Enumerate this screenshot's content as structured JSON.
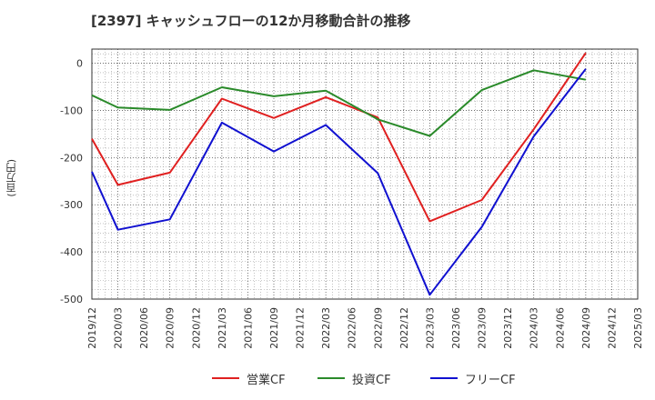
{
  "chart_data": {
    "type": "line",
    "title": "[2397]  キャッシュフローの12か月移動合計の推移",
    "ylabel": "(百万円)",
    "xlabel": "",
    "ylim": [
      -500,
      30
    ],
    "yticks": [
      0,
      -100,
      -200,
      -300,
      -400,
      -500
    ],
    "grid": true,
    "legend_position": "bottom",
    "x": [
      "2019/12",
      "2020/03",
      "2020/06",
      "2020/09",
      "2020/12",
      "2021/03",
      "2021/06",
      "2021/09",
      "2021/12",
      "2022/03",
      "2022/06",
      "2022/09",
      "2022/12",
      "2023/03",
      "2023/06",
      "2023/09",
      "2023/12",
      "2024/03",
      "2024/06",
      "2024/09",
      "2024/12",
      "2025/03"
    ],
    "series": [
      {
        "name": "営業CF",
        "color": "#e02020",
        "points": [
          [
            "2019/12",
            -160
          ],
          [
            "2020/03",
            -258
          ],
          [
            "2020/09",
            -232
          ],
          [
            "2021/03",
            -75
          ],
          [
            "2021/09",
            -116
          ],
          [
            "2022/03",
            -72
          ],
          [
            "2022/09",
            -115
          ],
          [
            "2023/03",
            -335
          ],
          [
            "2023/09",
            -290
          ],
          [
            "2024/03",
            -140
          ],
          [
            "2024/09",
            22
          ]
        ]
      },
      {
        "name": "投資CF",
        "color": "#2a8a2a",
        "points": [
          [
            "2019/12",
            -68
          ],
          [
            "2020/03",
            -94
          ],
          [
            "2020/09",
            -99
          ],
          [
            "2021/03",
            -51
          ],
          [
            "2021/09",
            -70
          ],
          [
            "2022/03",
            -58
          ],
          [
            "2022/09",
            -119
          ],
          [
            "2023/03",
            -154
          ],
          [
            "2023/09",
            -57
          ],
          [
            "2024/03",
            -15
          ],
          [
            "2024/09",
            -35
          ]
        ]
      },
      {
        "name": "フリーCF",
        "color": "#1010d0",
        "points": [
          [
            "2019/12",
            -230
          ],
          [
            "2020/03",
            -353
          ],
          [
            "2020/09",
            -331
          ],
          [
            "2021/03",
            -126
          ],
          [
            "2021/09",
            -187
          ],
          [
            "2022/03",
            -131
          ],
          [
            "2022/09",
            -233
          ],
          [
            "2023/03",
            -491
          ],
          [
            "2023/09",
            -347
          ],
          [
            "2024/03",
            -155
          ],
          [
            "2024/09",
            -12
          ]
        ]
      }
    ]
  }
}
